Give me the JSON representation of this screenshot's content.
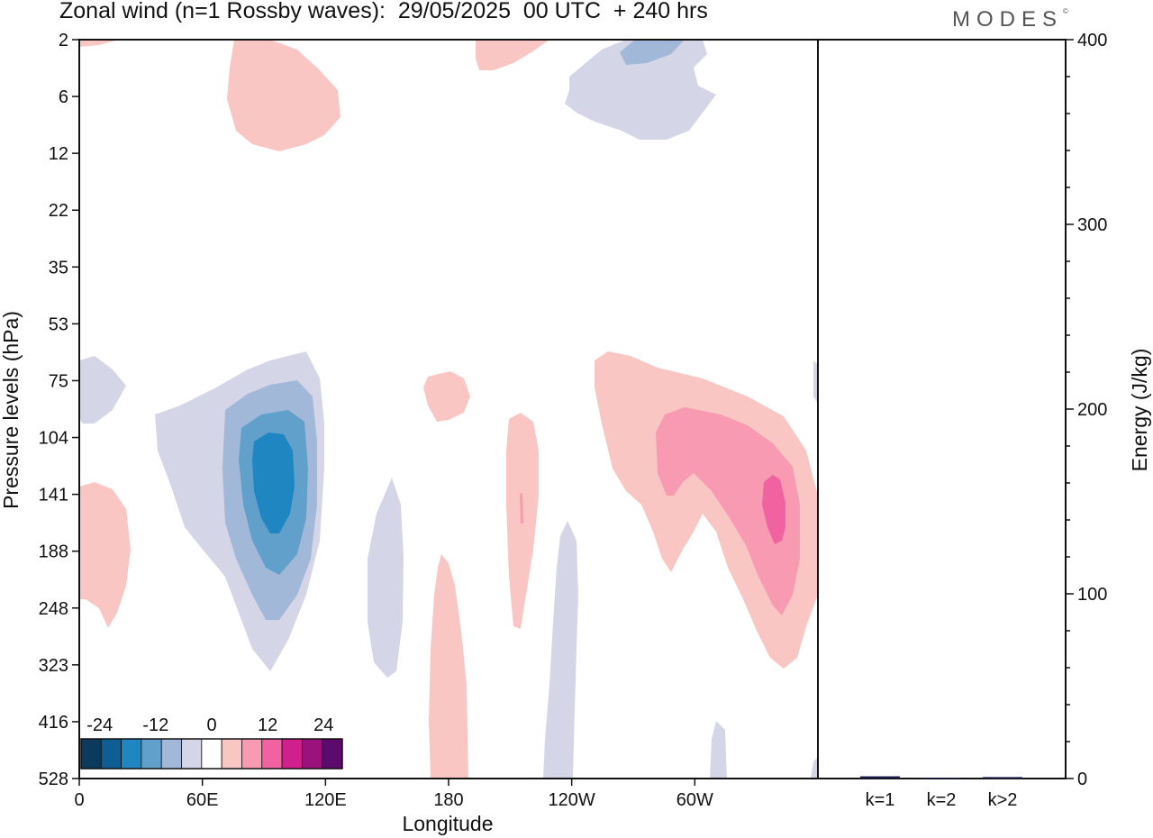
{
  "header": {
    "title": "Zonal wind (n=1 Rossby waves):  29/05/2025  00 UTC  + 240 hrs",
    "logo": "MODES",
    "logo_mark": "©"
  },
  "chart_data": [
    {
      "type": "heatmap",
      "subtype": "filled-contour",
      "title": "Zonal wind (n=1 Rossby waves):  29/05/2025  00 UTC  + 240 hrs",
      "xlabel": "Longitude",
      "ylabel": "Pressure levels (hPa)",
      "x_ticks": [
        "0",
        "60E",
        "120E",
        "180",
        "120W",
        "60W"
      ],
      "x_tick_values_deg_east": [
        0,
        60,
        120,
        180,
        240,
        300
      ],
      "xlim_deg_east": [
        0,
        360
      ],
      "y_ticks": [
        "2",
        "6",
        "12",
        "22",
        "35",
        "53",
        "75",
        "104",
        "141",
        "188",
        "248",
        "323",
        "416",
        "528"
      ],
      "y_scale": "pressure levels, top=2 hPa, bottom=528 hPa",
      "colorbar": {
        "labels": [
          "-24",
          "-12",
          "0",
          "12",
          "24"
        ],
        "label_values": [
          -24,
          -12,
          0,
          12,
          24
        ],
        "levels": [
          -28,
          -24,
          -20,
          -16,
          -12,
          -8,
          -4,
          4,
          8,
          12,
          16,
          20,
          24,
          28
        ],
        "colors": [
          "#0b3a5c",
          "#0e5d93",
          "#1f86c2",
          "#62a0cc",
          "#a2b8d8",
          "#d5d5e8",
          "#ffffff",
          "#f9c6c3",
          "#f79ab2",
          "#f062a0",
          "#d0208e",
          "#9c127c",
          "#5c0a6c"
        ],
        "placement": "bottom-left"
      },
      "features": [
        {
          "sign": "negative",
          "peak": -20,
          "lon_center_deg_east": 95,
          "pressure_range_hPa": [
            75,
            323
          ],
          "peak_pressure_hPa": 141
        },
        {
          "sign": "negative",
          "peak": -8,
          "lon_center_deg_east": 15,
          "pressure_range_hPa": [
            53,
            104
          ]
        },
        {
          "sign": "negative",
          "peak": -8,
          "lon_center_deg_east": 150,
          "pressure_range_hPa": [
            141,
            323
          ]
        },
        {
          "sign": "negative",
          "peak": -8,
          "lon_center_deg_east": 237,
          "pressure_range_hPa": [
            141,
            528
          ]
        },
        {
          "sign": "negative",
          "peak": -8,
          "lon_center_deg_east": 302,
          "pressure_range_hPa": [
            416,
            528
          ]
        },
        {
          "sign": "negative",
          "peak": -12,
          "lon_center_deg_east": 280,
          "pressure_range_hPa": [
            2,
            12
          ]
        },
        {
          "sign": "positive",
          "peak": 8,
          "lon_center_deg_east": 90,
          "pressure_range_hPa": [
            2,
            12
          ]
        },
        {
          "sign": "positive",
          "peak": 4,
          "lon_center_deg_east": 10,
          "pressure_range_hPa": [
            141,
            248
          ]
        },
        {
          "sign": "positive",
          "peak": 4,
          "lon_center_deg_east": 178,
          "pressure_range_hPa": [
            75,
            104
          ]
        },
        {
          "sign": "positive",
          "peak": 4,
          "lon_center_deg_east": 176,
          "pressure_range_hPa": [
            188,
            528
          ]
        },
        {
          "sign": "positive",
          "peak": 8,
          "lon_center_deg_east": 206,
          "pressure_range_hPa": [
            104,
            248
          ]
        },
        {
          "sign": "positive",
          "peak": 4,
          "lon_center_deg_east": 200,
          "pressure_range_hPa": [
            2,
            6
          ]
        },
        {
          "sign": "positive",
          "peak": 16,
          "lon_center_deg_east": 320,
          "pressure_range_hPa": [
            75,
            323
          ],
          "peak_pressure_hPa": 141
        }
      ]
    },
    {
      "type": "bar",
      "categories": [
        "k=1",
        "k=2",
        "k>2"
      ],
      "values": [
        1.2,
        0.4,
        0.8
      ],
      "ylabel": "Energy (J/kg)",
      "ylim": [
        0,
        400
      ],
      "y_ticks": [
        "0",
        "100",
        "200",
        "300",
        "400"
      ],
      "bar_color": "#1a1a4a"
    }
  ]
}
